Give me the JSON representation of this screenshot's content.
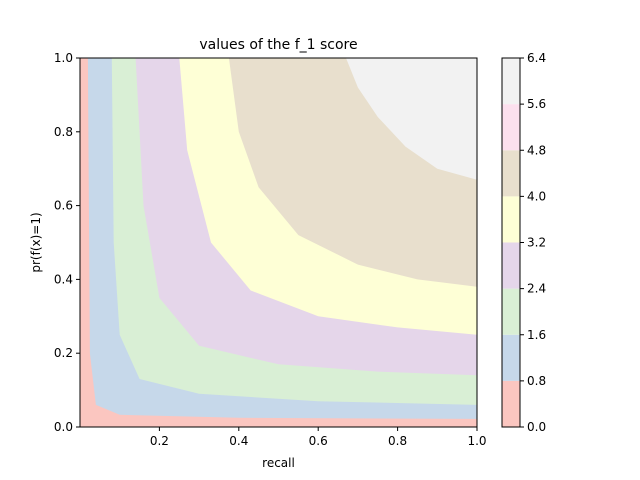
{
  "chart_data": {
    "type": "contourf",
    "title": "values of the f_1 score",
    "xlabel": "recall",
    "ylabel": "pr(f(x)=1)",
    "xlim": [
      0.0,
      1.0
    ],
    "ylim": [
      0.0,
      1.0
    ],
    "x_ticks": [
      {
        "value": 0.2,
        "label": "0.2"
      },
      {
        "value": 0.4,
        "label": "0.4"
      },
      {
        "value": 0.6,
        "label": "0.6"
      },
      {
        "value": 0.8,
        "label": "0.8"
      },
      {
        "value": 1.0,
        "label": "1.0"
      }
    ],
    "y_ticks": [
      {
        "value": 0.0,
        "label": "0.0"
      },
      {
        "value": 0.2,
        "label": "0.2"
      },
      {
        "value": 0.4,
        "label": "0.4"
      },
      {
        "value": 0.6,
        "label": "0.6"
      },
      {
        "value": 0.8,
        "label": "0.8"
      },
      {
        "value": 1.0,
        "label": "1.0"
      }
    ],
    "colorbar": {
      "levels": [
        0.0,
        0.8,
        1.6,
        2.4,
        3.2,
        4.0,
        4.8,
        5.6,
        6.4
      ],
      "tick_labels": [
        "0.0",
        "0.8",
        "1.6",
        "2.4",
        "3.2",
        "4.0",
        "4.8",
        "5.6",
        "6.4"
      ],
      "colors": [
        "#fbc6c0",
        "#c6d8ea",
        "#d9efd5",
        "#e5d6ea",
        "#feffd6",
        "#e8dfcd",
        "#fce0ee",
        "#f2f2f2"
      ]
    },
    "contour_boundaries": [
      {
        "level": 0.8,
        "points": [
          [
            0.02,
            1.0
          ],
          [
            0.025,
            0.2
          ],
          [
            0.04,
            0.06
          ],
          [
            0.1,
            0.033
          ],
          [
            0.4,
            0.025
          ],
          [
            1.0,
            0.022
          ]
        ]
      },
      {
        "level": 1.6,
        "points": [
          [
            0.08,
            1.0
          ],
          [
            0.085,
            0.5
          ],
          [
            0.1,
            0.25
          ],
          [
            0.15,
            0.13
          ],
          [
            0.3,
            0.09
          ],
          [
            0.6,
            0.07
          ],
          [
            1.0,
            0.06
          ]
        ]
      },
      {
        "level": 2.4,
        "points": [
          [
            0.14,
            1.0
          ],
          [
            0.16,
            0.6
          ],
          [
            0.2,
            0.35
          ],
          [
            0.3,
            0.22
          ],
          [
            0.5,
            0.17
          ],
          [
            0.75,
            0.15
          ],
          [
            1.0,
            0.14
          ]
        ]
      },
      {
        "level": 3.2,
        "points": [
          [
            0.25,
            1.0
          ],
          [
            0.27,
            0.75
          ],
          [
            0.33,
            0.5
          ],
          [
            0.43,
            0.37
          ],
          [
            0.6,
            0.3
          ],
          [
            0.8,
            0.27
          ],
          [
            1.0,
            0.25
          ]
        ]
      },
      {
        "level": 4.0,
        "points": [
          [
            0.375,
            1.0
          ],
          [
            0.4,
            0.8
          ],
          [
            0.45,
            0.65
          ],
          [
            0.55,
            0.52
          ],
          [
            0.7,
            0.44
          ],
          [
            0.85,
            0.4
          ],
          [
            1.0,
            0.38
          ]
        ]
      },
      {
        "level": 5.6,
        "points": [
          [
            0.67,
            1.0
          ],
          [
            0.7,
            0.92
          ],
          [
            0.75,
            0.84
          ],
          [
            0.82,
            0.76
          ],
          [
            0.9,
            0.7
          ],
          [
            1.0,
            0.67
          ]
        ]
      }
    ]
  }
}
